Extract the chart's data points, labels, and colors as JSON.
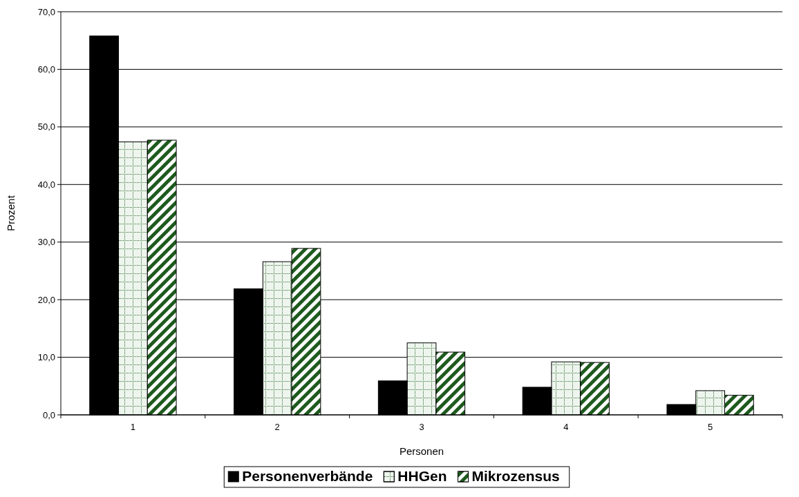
{
  "chart_data": {
    "type": "bar",
    "xlabel": "Personen",
    "ylabel": "Prozent",
    "categories": [
      "1",
      "2",
      "3",
      "4",
      "5"
    ],
    "series": [
      {
        "name": "Personenverbände",
        "color": "#000000",
        "values": [
          65.8,
          21.9,
          5.9,
          4.8,
          1.8
        ]
      },
      {
        "name": "HHGen",
        "color": "#eef5ee",
        "values": [
          47.4,
          26.6,
          12.5,
          9.2,
          4.2
        ]
      },
      {
        "name": "Mikrozensus",
        "color": "#1e5a1e",
        "values": [
          47.7,
          28.9,
          10.9,
          9.1,
          3.4
        ]
      }
    ],
    "ylim": [
      0,
      70
    ],
    "yticks": [
      {
        "value": 0,
        "label": "0,0"
      },
      {
        "value": 10,
        "label": "10,0"
      },
      {
        "value": 20,
        "label": "20,0"
      },
      {
        "value": 30,
        "label": "30,0"
      },
      {
        "value": 40,
        "label": "40,0"
      },
      {
        "value": 50,
        "label": "50,0"
      },
      {
        "value": 60,
        "label": "60,0"
      },
      {
        "value": 70,
        "label": "70,0"
      }
    ],
    "grid": "y",
    "legend": "bottom"
  }
}
